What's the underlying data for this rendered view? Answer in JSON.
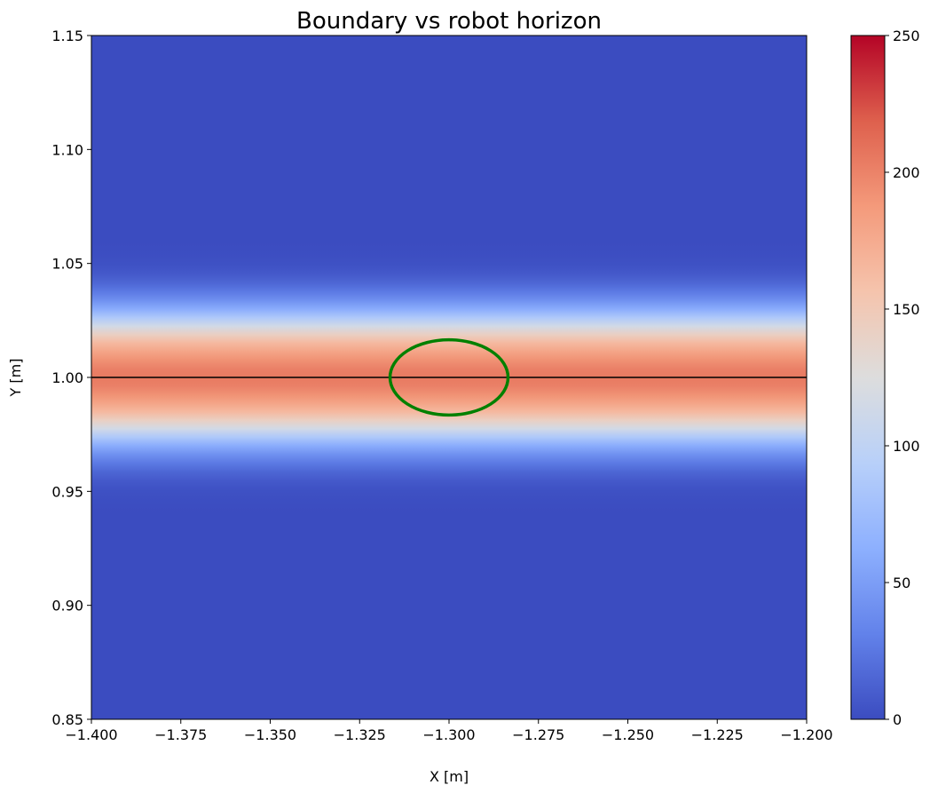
{
  "chart_data": {
    "type": "heatmap",
    "title": "Boundary vs robot horizon",
    "xlabel": "X [m]",
    "ylabel": "Y [m]",
    "xlim": [
      -1.4,
      -1.2
    ],
    "ylim": [
      0.85,
      1.15
    ],
    "x_ticks": [
      -1.4,
      -1.375,
      -1.35,
      -1.325,
      -1.3,
      -1.275,
      -1.25,
      -1.225,
      -1.2
    ],
    "x_tick_labels": [
      "−1.400",
      "−1.375",
      "−1.350",
      "−1.325",
      "−1.300",
      "−1.275",
      "−1.250",
      "−1.225",
      "−1.200"
    ],
    "y_ticks": [
      0.85,
      0.9,
      0.95,
      1.0,
      1.05,
      1.1,
      1.15
    ],
    "y_tick_labels": [
      "0.85",
      "0.90",
      "0.95",
      "1.00",
      "1.05",
      "1.10",
      "1.15"
    ],
    "colormap": "coolwarm",
    "colorbar": {
      "range": [
        0,
        250
      ],
      "ticks": [
        0,
        50,
        100,
        150,
        200,
        250
      ],
      "tick_labels": [
        "0",
        "50",
        "100",
        "150",
        "200",
        "250"
      ]
    },
    "field": {
      "description": "cost band along horizontal boundary",
      "center_y": 1.0,
      "peak_value": 205,
      "profile": [
        {
          "dy": 0.0,
          "value": 205
        },
        {
          "dy": 0.005,
          "value": 200
        },
        {
          "dy": 0.01,
          "value": 185
        },
        {
          "dy": 0.015,
          "value": 165
        },
        {
          "dy": 0.02,
          "value": 135
        },
        {
          "dy": 0.025,
          "value": 95
        },
        {
          "dy": 0.03,
          "value": 60
        },
        {
          "dy": 0.035,
          "value": 35
        },
        {
          "dy": 0.04,
          "value": 18
        },
        {
          "dy": 0.045,
          "value": 8
        },
        {
          "dy": 0.05,
          "value": 2
        },
        {
          "dy": 0.06,
          "value": 0
        }
      ]
    },
    "boundary_line": {
      "y": 1.0,
      "color": "#000000"
    },
    "robot_horizon": {
      "shape": "circle",
      "center": [
        -1.3,
        1.0
      ],
      "radius": 0.0165,
      "color": "#008000"
    }
  }
}
